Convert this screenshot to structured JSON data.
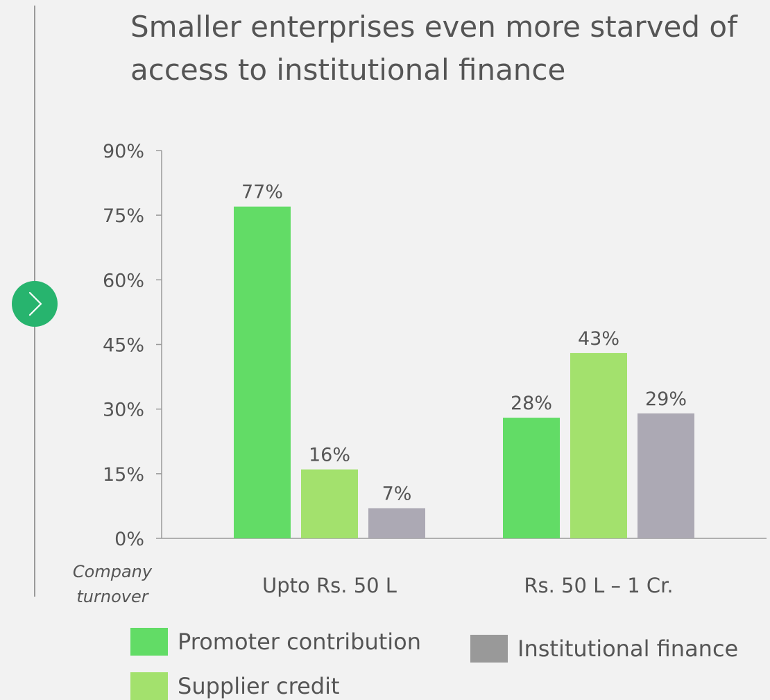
{
  "page": {
    "title": "Smaller enterprises even more starved of access to institutional finance"
  },
  "colors": {
    "nav_button": "#27b46e",
    "axis": "#9a9a9a",
    "text": "#555555"
  },
  "chart_data": {
    "type": "bar",
    "title": "Smaller enterprises even more starved of access to institutional finance",
    "xlabel": "Company turnover",
    "ylabel": "",
    "categories": [
      "Upto Rs. 50 L",
      "Rs. 50 L – 1 Cr."
    ],
    "series": [
      {
        "name": "Promoter contribution",
        "values": [
          77,
          28
        ],
        "color": "#62dc66",
        "legend_color": "#62dc66"
      },
      {
        "name": "Supplier credit",
        "values": [
          16,
          43
        ],
        "color": "#a3e16d",
        "legend_color": "#a3e16d"
      },
      {
        "name": "Institutional finance",
        "values": [
          7,
          29
        ],
        "color": "#aca9b4",
        "legend_color": "#999999"
      }
    ],
    "data_labels": [
      [
        "77%",
        "28%"
      ],
      [
        "16%",
        "43%"
      ],
      [
        "7%",
        "29%"
      ]
    ],
    "yticks": [
      "0%",
      "15%",
      "30%",
      "45%",
      "60%",
      "75%",
      "90%"
    ],
    "ytick_values": [
      0,
      15,
      30,
      45,
      60,
      75,
      90
    ],
    "ylim": [
      0,
      90
    ],
    "grid": false,
    "legend_position": "bottom"
  }
}
